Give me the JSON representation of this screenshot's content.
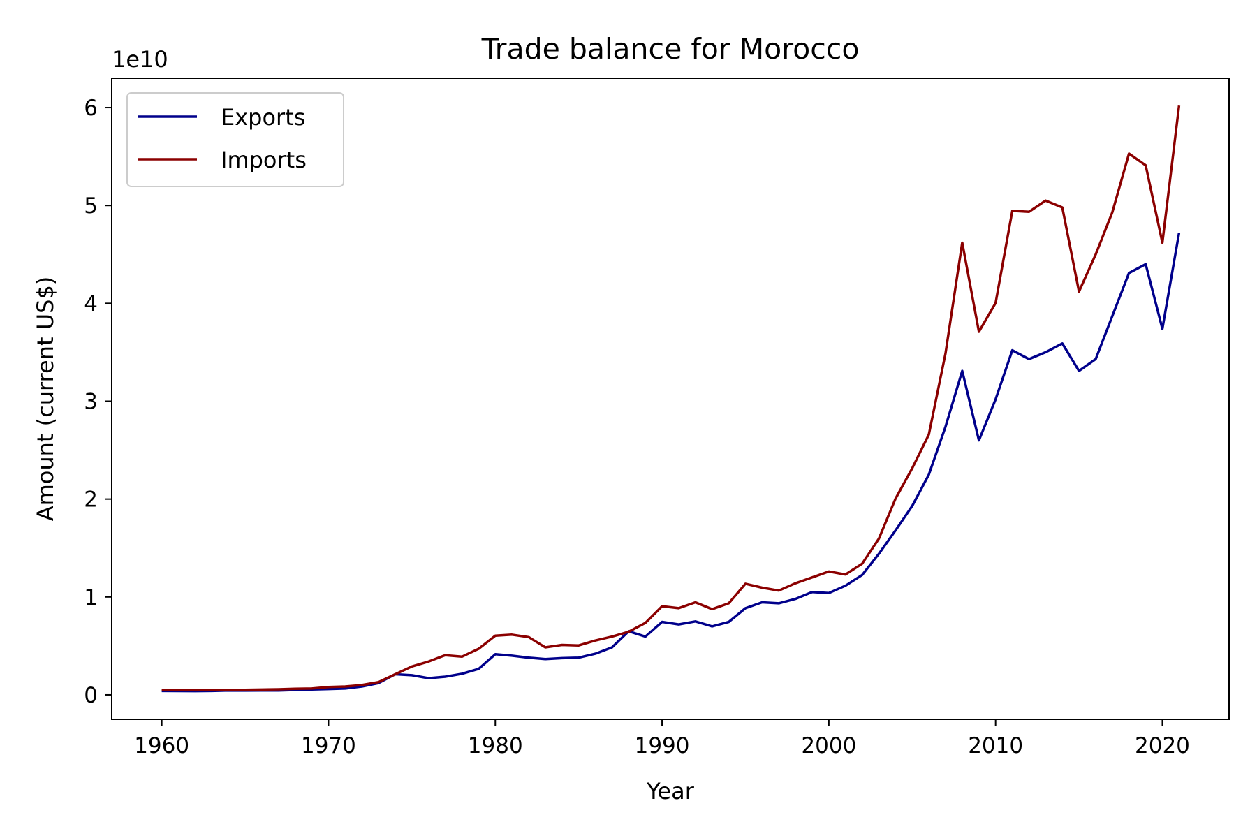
{
  "chart_data": {
    "type": "line",
    "title": "Trade balance for Morocco",
    "xlabel": "Year",
    "ylabel": "Amount (current US$)",
    "y_offset_text": "1e10",
    "y_scale": 10000000000,
    "xlim": [
      1957,
      2024
    ],
    "ylim": [
      -2500000000,
      63000000000
    ],
    "x_ticks": [
      1960,
      1970,
      1980,
      1990,
      2000,
      2010,
      2020
    ],
    "y_ticks": [
      0,
      1,
      2,
      3,
      4,
      5,
      6
    ],
    "grid": false,
    "legend_position": "top-left",
    "x": [
      1960,
      1961,
      1962,
      1963,
      1964,
      1965,
      1966,
      1967,
      1968,
      1969,
      1970,
      1971,
      1972,
      1973,
      1974,
      1975,
      1976,
      1977,
      1978,
      1979,
      1980,
      1981,
      1982,
      1983,
      1984,
      1985,
      1986,
      1987,
      1988,
      1989,
      1990,
      1991,
      1992,
      1993,
      1994,
      1995,
      1996,
      1997,
      1998,
      1999,
      2000,
      2001,
      2002,
      2003,
      2004,
      2005,
      2006,
      2007,
      2008,
      2009,
      2010,
      2011,
      2012,
      2013,
      2014,
      2015,
      2016,
      2017,
      2018,
      2019,
      2020,
      2021
    ],
    "series": [
      {
        "name": "Exports",
        "color": "#00008b",
        "values": [
          400000000,
          390000000,
          380000000,
          400000000,
          450000000,
          430000000,
          440000000,
          450000000,
          500000000,
          550000000,
          600000000,
          650000000,
          850000000,
          1200000000,
          2100000000,
          2000000000,
          1700000000,
          1850000000,
          2150000000,
          2650000000,
          4150000000,
          4000000000,
          3800000000,
          3650000000,
          3750000000,
          3800000000,
          4200000000,
          4850000000,
          6500000000,
          5950000000,
          7450000000,
          7200000000,
          7500000000,
          7000000000,
          7450000000,
          8850000000,
          9450000000,
          9350000000,
          9800000000,
          10500000000,
          10400000000,
          11150000000,
          12250000000,
          14400000000,
          16800000000,
          19300000000,
          22500000000,
          27400000000,
          33100000000,
          26000000000,
          30200000000,
          35200000000,
          34300000000,
          35000000000,
          35900000000,
          33100000000,
          34300000000,
          38700000000,
          43100000000,
          44000000000,
          37400000000,
          47200000000
        ]
      },
      {
        "name": "Imports",
        "color": "#8b0000",
        "values": [
          480000000,
          490000000,
          480000000,
          500000000,
          520000000,
          510000000,
          540000000,
          570000000,
          620000000,
          650000000,
          800000000,
          850000000,
          1000000000,
          1300000000,
          2100000000,
          2900000000,
          3400000000,
          4050000000,
          3900000000,
          4700000000,
          6050000000,
          6150000000,
          5900000000,
          4850000000,
          5100000000,
          5050000000,
          5550000000,
          5950000000,
          6450000000,
          7350000000,
          9050000000,
          8850000000,
          9450000000,
          8750000000,
          9350000000,
          11350000000,
          10950000000,
          10650000000,
          11400000000,
          12000000000,
          12600000000,
          12300000000,
          13400000000,
          15950000000,
          20050000000,
          23150000000,
          26600000000,
          34900000000,
          46200000000,
          37100000000,
          40050000000,
          49450000000,
          49350000000,
          50500000000,
          49800000000,
          41200000000,
          45000000000,
          49300000000,
          55300000000,
          54100000000,
          46200000000,
          60200000000
        ]
      }
    ]
  }
}
